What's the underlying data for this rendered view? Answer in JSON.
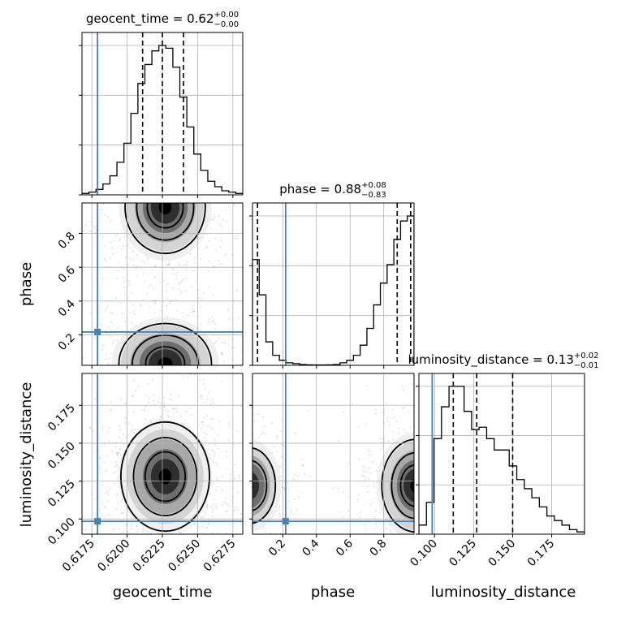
{
  "chart_data": {
    "type": "corner",
    "parameters": [
      "geocent_time",
      "phase",
      "luminosity_distance"
    ],
    "axis_labels": [
      "geocent_time",
      "phase",
      "luminosity_distance"
    ],
    "ranges": {
      "geocent_time": [
        0.6168,
        0.6282
      ],
      "phase": [
        0.02,
        0.98
      ],
      "luminosity_distance": [
        0.09,
        0.196
      ]
    },
    "ticks": {
      "geocent_time": {
        "values": [
          0.6175,
          0.62,
          0.6225,
          0.625,
          0.6275
        ],
        "labels": [
          "0.6175",
          "0.6200",
          "0.6225",
          "0.6250",
          "0.6275"
        ]
      },
      "phase": {
        "values": [
          0.2,
          0.4,
          0.6,
          0.8
        ],
        "labels": [
          "0.2",
          "0.4",
          "0.6",
          "0.8"
        ]
      },
      "luminosity_distance": {
        "values": [
          0.1,
          0.125,
          0.15,
          0.175
        ],
        "labels": [
          "0.100",
          "0.125",
          "0.150",
          "0.175"
        ]
      }
    },
    "truths": {
      "geocent_time": 0.6179,
      "phase": 0.217,
      "luminosity_distance": 0.0985
    },
    "truth_color": "#4682b4",
    "quantiles": {
      "geocent_time": [
        0.6211,
        0.6225,
        0.624
      ],
      "phase": [
        0.05,
        0.88,
        0.96
      ],
      "luminosity_distance": [
        0.112,
        0.127,
        0.15
      ]
    },
    "titles": [
      {
        "param": "geocent_time",
        "prefix": "geocent_time = 0.62",
        "plus": "+0.00",
        "minus": "−0.00"
      },
      {
        "param": "phase",
        "prefix": "phase = 0.88",
        "plus": "+0.08",
        "minus": "−0.83"
      },
      {
        "param": "luminosity_distance",
        "prefix": "luminosity_distance = 0.13",
        "plus": "+0.02",
        "minus": "−0.01"
      }
    ],
    "histograms": {
      "geocent_time": [
        0.5,
        1,
        2,
        4,
        7,
        12,
        19,
        30,
        41,
        48,
        53,
        55,
        54,
        47,
        36,
        25,
        15,
        9,
        5,
        3,
        1.5,
        1,
        0.5
      ],
      "phase": [
        63,
        42,
        14,
        6,
        3,
        1.5,
        1,
        0.5,
        0.3,
        0.2,
        0.2,
        0.3,
        0.5,
        1.5,
        3,
        6,
        12,
        22,
        36,
        49,
        60,
        75,
        86,
        89
      ],
      "luminosity_distance": [
        4,
        14,
        42,
        56,
        65,
        65,
        54,
        46,
        47,
        42,
        37,
        37,
        30,
        24,
        20,
        16,
        12,
        8,
        6,
        4,
        2,
        1
      ]
    },
    "grid": true
  }
}
